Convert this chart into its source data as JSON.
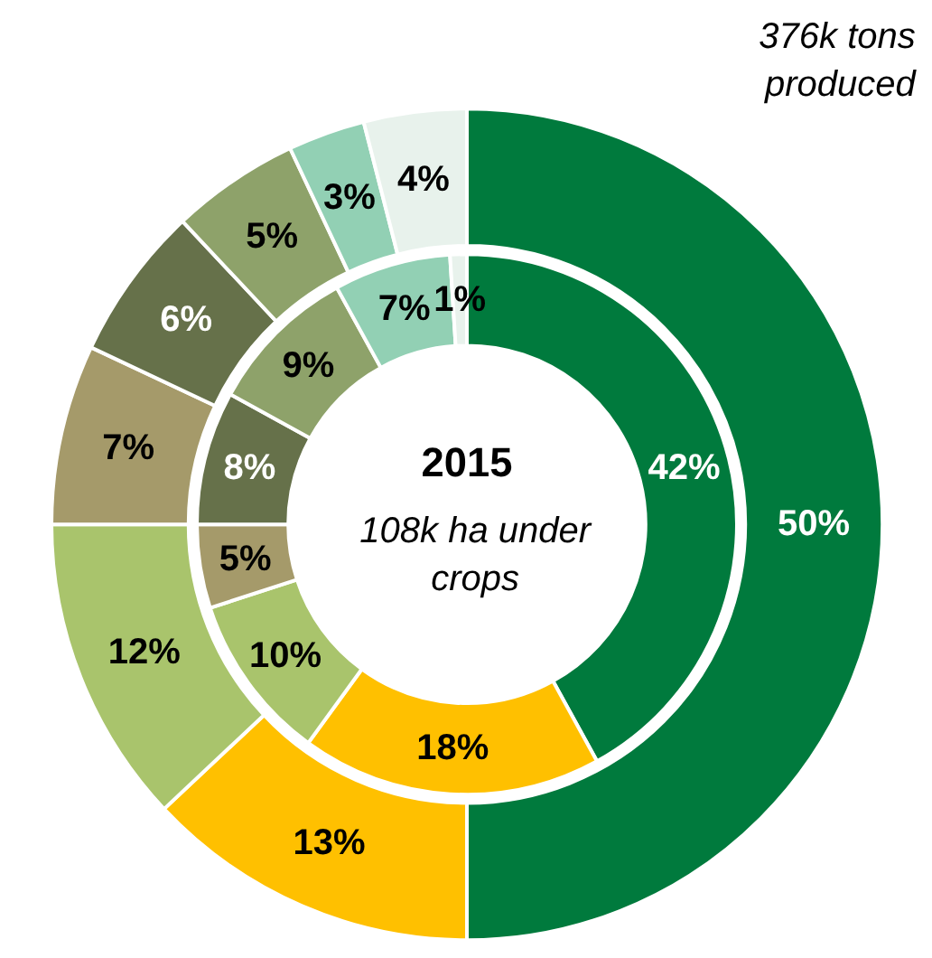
{
  "chart_data": {
    "type": "donut",
    "title": "2015",
    "annotations": [
      "376k tons\nproduced",
      "108k ha under\ncrops"
    ],
    "categories": [
      null,
      null,
      null,
      null,
      null,
      null,
      null,
      null
    ],
    "series": [
      {
        "values": [
          42,
          18,
          10,
          5,
          8,
          9,
          7,
          1
        ],
        "value_labels": [
          "42%",
          "18%",
          "10%",
          "5%",
          "8%",
          "9%",
          "7%",
          "1%"
        ],
        "colors": [
          "#007a3d",
          "#ffc000",
          "#a9c46c",
          "#a59a6a",
          "#66714a",
          "#8ea26a",
          "#92d0b4",
          "#e8f2ec"
        ]
      },
      {
        "values": [
          50,
          13,
          12,
          7,
          6,
          5,
          3,
          4
        ],
        "value_labels": [
          "50%",
          "13%",
          "12%",
          "7%",
          "6%",
          "5%",
          "3%",
          "4%"
        ],
        "colors": [
          "#007a3d",
          "#ffc000",
          "#a9c46c",
          "#a59a6a",
          "#66714a",
          "#8ea26a",
          "#92d0b4",
          "#e8f2ec"
        ]
      }
    ]
  }
}
